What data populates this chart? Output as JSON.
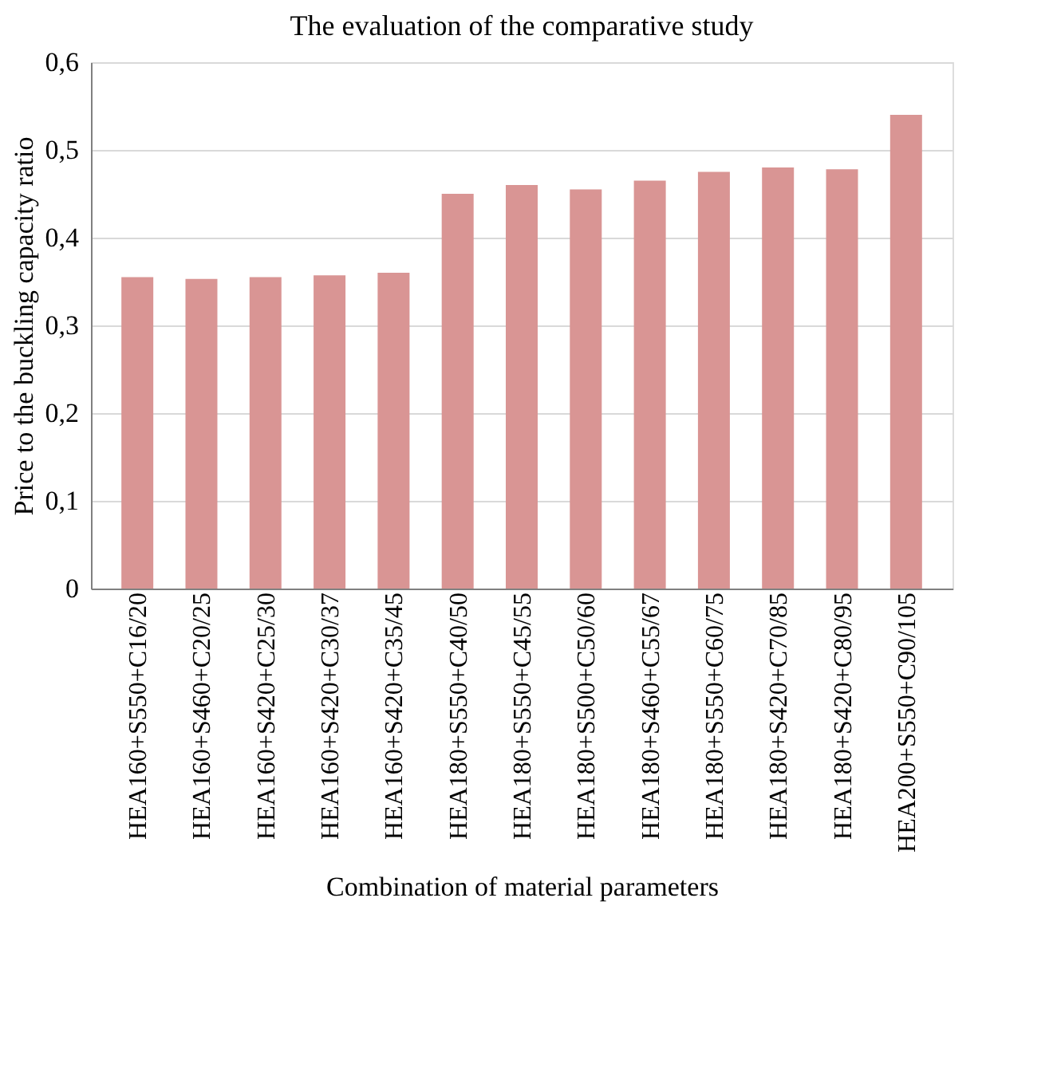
{
  "chart_data": {
    "type": "bar",
    "title": "The evaluation of the comparative study",
    "xlabel": "Combination of  material parameters",
    "ylabel": "Price to the buckling capacity ratio",
    "categories": [
      "HEA160+S550+C16/20",
      "HEA160+S460+C20/25",
      "HEA160+S420+C25/30",
      "HEA160+S420+C30/37",
      "HEA160+S420+C35/45",
      "HEA180+S550+C40/50",
      "HEA180+S550+C45/55",
      "HEA180+S500+C50/60",
      "HEA180+S460+C55/67",
      "HEA180+S550+C60/75",
      "HEA180+S420+C70/85",
      "HEA180+S420+C80/95",
      "HEA200+S550+C90/105"
    ],
    "values": [
      0.355,
      0.353,
      0.355,
      0.357,
      0.36,
      0.45,
      0.46,
      0.455,
      0.465,
      0.475,
      0.48,
      0.478,
      0.54
    ],
    "color": "#d99594",
    "ylim": [
      0,
      0.6
    ],
    "yticks": [
      0,
      {
        "value": 0.1,
        "label": "0,1"
      },
      {
        "value": 0.2,
        "label": "0,2"
      },
      {
        "value": 0.3,
        "label": "0,3"
      },
      {
        "value": 0.4,
        "label": "0,4"
      },
      {
        "value": 0.5,
        "label": "0,5"
      },
      {
        "value": 0.6,
        "label": "0,6"
      }
    ],
    "grid": "y"
  }
}
